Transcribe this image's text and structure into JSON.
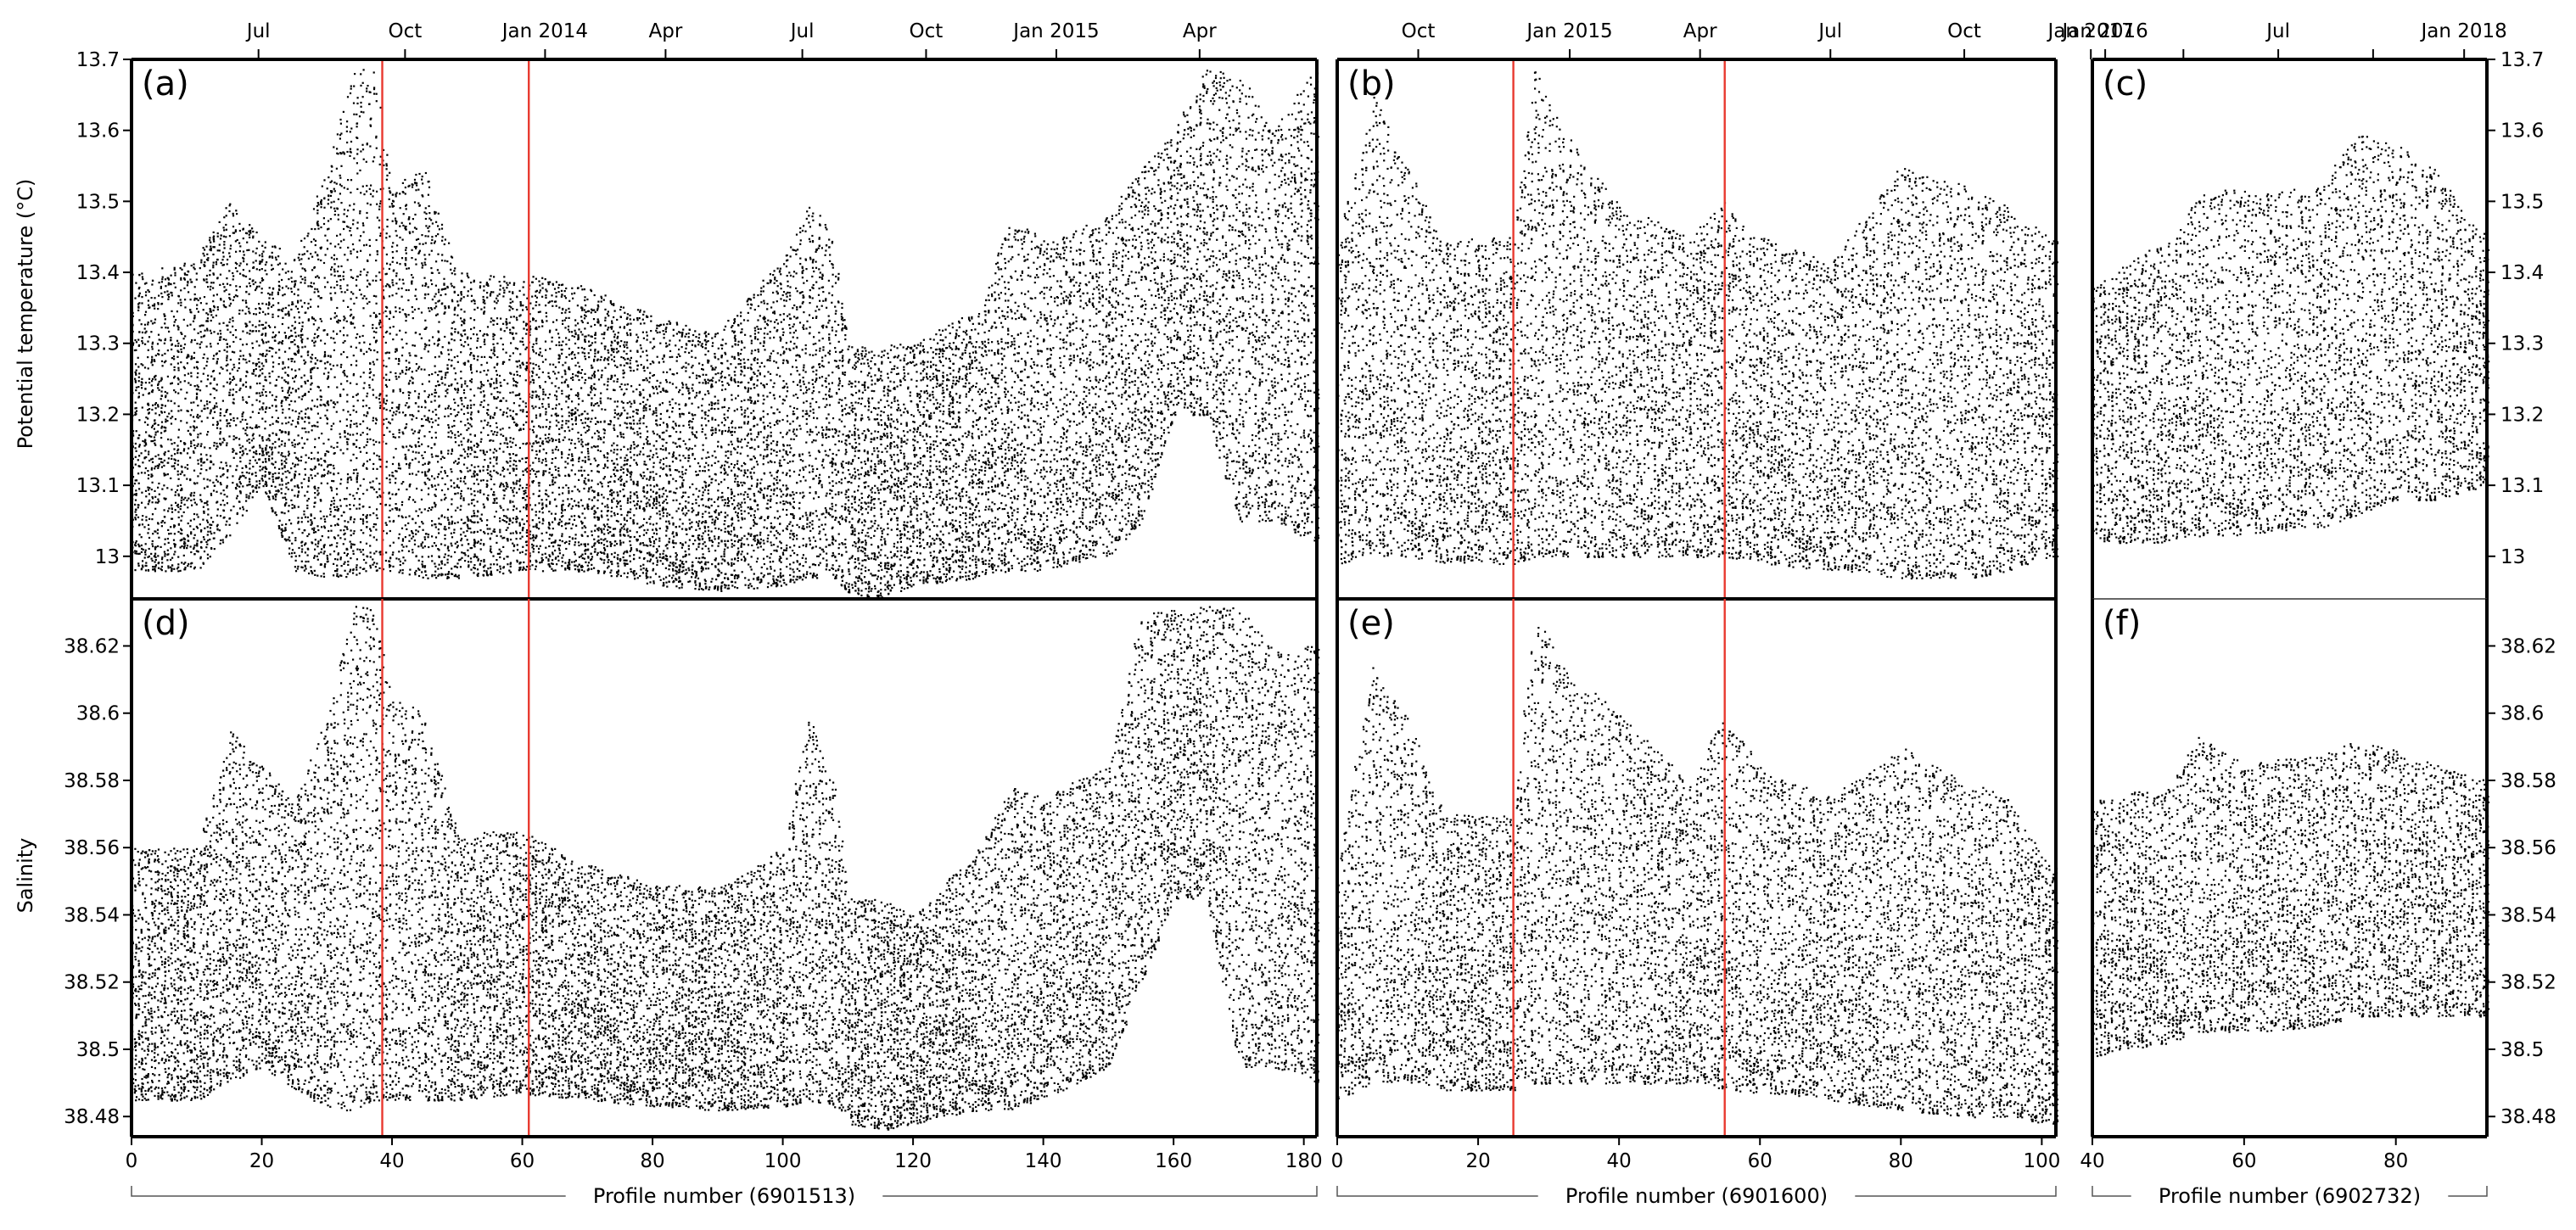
{
  "figure": {
    "ylabel_top": "Potential temperature (°C)",
    "ylabel_bottom": "Salinity"
  },
  "chart_data": [
    {
      "id": "a",
      "panel_label": "(a)",
      "type": "scatter",
      "variable": "potential temperature",
      "xlabel": "Profile number (6901513)",
      "xlim": [
        0,
        182
      ],
      "ylim": [
        12.94,
        13.7
      ],
      "xticks": [
        0,
        20,
        40,
        60,
        80,
        100,
        120,
        140,
        160,
        180
      ],
      "yticks": [
        13,
        13.1,
        13.2,
        13.3,
        13.4,
        13.5,
        13.6,
        13.7
      ],
      "yticks_text": [
        "13",
        "13.1",
        "13.2",
        "13.3",
        "13.4",
        "13.5",
        "13.6",
        "13.7"
      ],
      "top_axis": [
        {
          "x": 19.5,
          "label": "Jul"
        },
        {
          "x": 42,
          "label": "Oct"
        },
        {
          "x": 63.5,
          "label": "Jan 2014"
        },
        {
          "x": 82,
          "label": "Apr"
        },
        {
          "x": 103,
          "label": "Jul"
        },
        {
          "x": 122,
          "label": "Oct"
        },
        {
          "x": 142,
          "label": "Jan 2015"
        },
        {
          "x": 164,
          "label": "Apr"
        }
      ],
      "red_lines": [
        38.5,
        61
      ],
      "envelope": [
        {
          "x": 0,
          "y": [
            12.98,
            13.4
          ]
        },
        {
          "x": 10,
          "y": [
            12.98,
            13.42
          ]
        },
        {
          "x": 15,
          "y": [
            13.03,
            13.5
          ]
        },
        {
          "x": 20,
          "y": [
            13.1,
            13.45
          ]
        },
        {
          "x": 25,
          "y": [
            12.98,
            13.42
          ]
        },
        {
          "x": 30,
          "y": [
            12.97,
            13.55
          ]
        },
        {
          "x": 34,
          "y": [
            12.97,
            13.69
          ]
        },
        {
          "x": 37,
          "y": [
            12.98,
            13.69
          ]
        },
        {
          "x": 40,
          "y": [
            12.98,
            13.52
          ]
        },
        {
          "x": 45,
          "y": [
            12.97,
            13.55
          ]
        },
        {
          "x": 50,
          "y": [
            12.97,
            13.4
          ]
        },
        {
          "x": 60,
          "y": [
            12.98,
            13.4
          ]
        },
        {
          "x": 70,
          "y": [
            12.98,
            13.38
          ]
        },
        {
          "x": 80,
          "y": [
            12.96,
            13.34
          ]
        },
        {
          "x": 90,
          "y": [
            12.95,
            13.32
          ]
        },
        {
          "x": 100,
          "y": [
            12.96,
            13.42
          ]
        },
        {
          "x": 104,
          "y": [
            12.97,
            13.5
          ]
        },
        {
          "x": 108,
          "y": [
            12.97,
            13.45
          ]
        },
        {
          "x": 110,
          "y": [
            12.95,
            13.3
          ]
        },
        {
          "x": 115,
          "y": [
            12.94,
            13.3
          ]
        },
        {
          "x": 120,
          "y": [
            12.96,
            13.3
          ]
        },
        {
          "x": 130,
          "y": [
            12.97,
            13.35
          ]
        },
        {
          "x": 135,
          "y": [
            12.98,
            13.48
          ]
        },
        {
          "x": 140,
          "y": [
            12.98,
            13.45
          ]
        },
        {
          "x": 150,
          "y": [
            13.0,
            13.48
          ]
        },
        {
          "x": 155,
          "y": [
            13.05,
            13.55
          ]
        },
        {
          "x": 160,
          "y": [
            13.2,
            13.6
          ]
        },
        {
          "x": 165,
          "y": [
            13.2,
            13.69
          ]
        },
        {
          "x": 170,
          "y": [
            13.05,
            13.69
          ]
        },
        {
          "x": 175,
          "y": [
            13.05,
            13.6
          ]
        },
        {
          "x": 182,
          "y": [
            13.02,
            13.69
          ]
        }
      ]
    },
    {
      "id": "b",
      "panel_label": "(b)",
      "type": "scatter",
      "variable": "potential temperature",
      "xlabel": "Profile number (6901600)",
      "xlim": [
        0,
        102
      ],
      "ylim": [
        12.94,
        13.7
      ],
      "xticks": [
        0,
        20,
        40,
        60,
        80,
        100
      ],
      "yticks": [
        13,
        13.1,
        13.2,
        13.3,
        13.4,
        13.5,
        13.6,
        13.7
      ],
      "top_axis": [
        {
          "x": 11.5,
          "label": "Oct"
        },
        {
          "x": 33,
          "label": "Jan 2015"
        },
        {
          "x": 51.5,
          "label": "Apr"
        },
        {
          "x": 70,
          "label": "Jul"
        },
        {
          "x": 89,
          "label": "Oct"
        },
        {
          "x": 109,
          "label": "Jan 2016"
        }
      ],
      "red_lines": [
        25,
        55
      ],
      "envelope": [
        {
          "x": 0,
          "y": [
            12.99,
            13.45
          ]
        },
        {
          "x": 5,
          "y": [
            13.0,
            13.65
          ]
        },
        {
          "x": 10,
          "y": [
            13.0,
            13.55
          ]
        },
        {
          "x": 15,
          "y": [
            12.99,
            13.45
          ]
        },
        {
          "x": 25,
          "y": [
            12.99,
            13.45
          ]
        },
        {
          "x": 28,
          "y": [
            13.0,
            13.69
          ]
        },
        {
          "x": 32,
          "y": [
            13.0,
            13.6
          ]
        },
        {
          "x": 40,
          "y": [
            13.0,
            13.5
          ]
        },
        {
          "x": 50,
          "y": [
            13.0,
            13.45
          ]
        },
        {
          "x": 55,
          "y": [
            13.0,
            13.5
          ]
        },
        {
          "x": 60,
          "y": [
            12.99,
            13.45
          ]
        },
        {
          "x": 70,
          "y": [
            12.98,
            13.42
          ]
        },
        {
          "x": 80,
          "y": [
            12.97,
            13.55
          ]
        },
        {
          "x": 90,
          "y": [
            12.97,
            13.52
          ]
        },
        {
          "x": 95,
          "y": [
            12.98,
            13.5
          ]
        },
        {
          "x": 101,
          "y": [
            13.0,
            13.45
          ]
        }
      ]
    },
    {
      "id": "c",
      "panel_label": "(c)",
      "type": "scatter",
      "variable": "potential temperature",
      "xlabel": "Profile number (6902732)",
      "xlim": [
        40,
        92
      ],
      "ylim": [
        12.94,
        13.7
      ],
      "xticks": [
        40,
        60,
        80
      ],
      "yticks": [
        13,
        13.1,
        13.2,
        13.3,
        13.4,
        13.5,
        13.6,
        13.7
      ],
      "top_axis": [
        {
          "x": 39.8,
          "label": "Jan 2017"
        },
        {
          "x": 52,
          "label": ""
        },
        {
          "x": 64.5,
          "label": "Jul"
        },
        {
          "x": 77,
          "label": ""
        },
        {
          "x": 89,
          "label": "Jan 2018"
        }
      ],
      "red_lines": [],
      "envelope": [
        {
          "x": 40,
          "y": [
            13.02,
            13.38
          ]
        },
        {
          "x": 50,
          "y": [
            13.02,
            13.45
          ]
        },
        {
          "x": 55,
          "y": [
            13.03,
            13.52
          ]
        },
        {
          "x": 60,
          "y": [
            13.03,
            13.52
          ]
        },
        {
          "x": 70,
          "y": [
            13.04,
            13.52
          ]
        },
        {
          "x": 75,
          "y": [
            13.06,
            13.6
          ]
        },
        {
          "x": 80,
          "y": [
            13.08,
            13.58
          ]
        },
        {
          "x": 85,
          "y": [
            13.08,
            13.55
          ]
        },
        {
          "x": 92,
          "y": [
            13.1,
            13.45
          ]
        }
      ]
    },
    {
      "id": "d",
      "panel_label": "(d)",
      "type": "scatter",
      "variable": "salinity",
      "xlim": [
        0,
        182
      ],
      "ylim": [
        38.474,
        38.634
      ],
      "xticks": [
        0,
        20,
        40,
        60,
        80,
        100,
        120,
        140,
        160,
        180
      ],
      "yticks": [
        38.48,
        38.5,
        38.52,
        38.54,
        38.56,
        38.58,
        38.6,
        38.62
      ],
      "yticks_text": [
        "38.48",
        "38.5",
        "38.52",
        "38.54",
        "38.56",
        "38.58",
        "38.6",
        "38.62"
      ],
      "red_lines": [
        38.5,
        61
      ],
      "envelope": [
        {
          "x": 0,
          "y": [
            38.485,
            38.56
          ]
        },
        {
          "x": 10,
          "y": [
            38.485,
            38.56
          ]
        },
        {
          "x": 15,
          "y": [
            38.49,
            38.595
          ]
        },
        {
          "x": 20,
          "y": [
            38.495,
            38.585
          ]
        },
        {
          "x": 25,
          "y": [
            38.488,
            38.575
          ]
        },
        {
          "x": 30,
          "y": [
            38.482,
            38.6
          ]
        },
        {
          "x": 34,
          "y": [
            38.482,
            38.632
          ]
        },
        {
          "x": 37,
          "y": [
            38.485,
            38.632
          ]
        },
        {
          "x": 40,
          "y": [
            38.485,
            38.605
          ]
        },
        {
          "x": 45,
          "y": [
            38.485,
            38.6
          ]
        },
        {
          "x": 50,
          "y": [
            38.485,
            38.565
          ]
        },
        {
          "x": 60,
          "y": [
            38.487,
            38.565
          ]
        },
        {
          "x": 70,
          "y": [
            38.485,
            38.555
          ]
        },
        {
          "x": 80,
          "y": [
            38.483,
            38.55
          ]
        },
        {
          "x": 90,
          "y": [
            38.482,
            38.548
          ]
        },
        {
          "x": 100,
          "y": [
            38.483,
            38.56
          ]
        },
        {
          "x": 104,
          "y": [
            38.485,
            38.6
          ]
        },
        {
          "x": 108,
          "y": [
            38.483,
            38.58
          ]
        },
        {
          "x": 110,
          "y": [
            38.478,
            38.545
          ]
        },
        {
          "x": 115,
          "y": [
            38.476,
            38.545
          ]
        },
        {
          "x": 120,
          "y": [
            38.478,
            38.54
          ]
        },
        {
          "x": 130,
          "y": [
            38.482,
            38.56
          ]
        },
        {
          "x": 135,
          "y": [
            38.482,
            38.58
          ]
        },
        {
          "x": 140,
          "y": [
            38.485,
            38.575
          ]
        },
        {
          "x": 150,
          "y": [
            38.495,
            38.585
          ]
        },
        {
          "x": 155,
          "y": [
            38.52,
            38.63
          ]
        },
        {
          "x": 160,
          "y": [
            38.545,
            38.632
          ]
        },
        {
          "x": 165,
          "y": [
            38.545,
            38.632
          ]
        },
        {
          "x": 170,
          "y": [
            38.495,
            38.632
          ]
        },
        {
          "x": 175,
          "y": [
            38.495,
            38.62
          ]
        },
        {
          "x": 182,
          "y": [
            38.49,
            38.62
          ]
        }
      ]
    },
    {
      "id": "e",
      "panel_label": "(e)",
      "type": "scatter",
      "variable": "salinity",
      "xlim": [
        0,
        102
      ],
      "ylim": [
        38.474,
        38.634
      ],
      "xticks": [
        0,
        20,
        40,
        60,
        80,
        100
      ],
      "yticks": [
        38.48,
        38.5,
        38.52,
        38.54,
        38.56,
        38.58,
        38.6,
        38.62
      ],
      "red_lines": [
        25,
        55
      ],
      "envelope": [
        {
          "x": 0,
          "y": [
            38.485,
            38.555
          ]
        },
        {
          "x": 5,
          "y": [
            38.49,
            38.615
          ]
        },
        {
          "x": 10,
          "y": [
            38.49,
            38.6
          ]
        },
        {
          "x": 15,
          "y": [
            38.488,
            38.57
          ]
        },
        {
          "x": 25,
          "y": [
            38.488,
            38.57
          ]
        },
        {
          "x": 28,
          "y": [
            38.49,
            38.632
          ]
        },
        {
          "x": 32,
          "y": [
            38.49,
            38.615
          ]
        },
        {
          "x": 40,
          "y": [
            38.49,
            38.6
          ]
        },
        {
          "x": 50,
          "y": [
            38.49,
            38.58
          ]
        },
        {
          "x": 55,
          "y": [
            38.488,
            38.6
          ]
        },
        {
          "x": 60,
          "y": [
            38.487,
            38.585
          ]
        },
        {
          "x": 70,
          "y": [
            38.485,
            38.575
          ]
        },
        {
          "x": 80,
          "y": [
            38.482,
            38.59
          ]
        },
        {
          "x": 90,
          "y": [
            38.48,
            38.58
          ]
        },
        {
          "x": 95,
          "y": [
            38.48,
            38.575
          ]
        },
        {
          "x": 101,
          "y": [
            38.478,
            38.555
          ]
        }
      ]
    },
    {
      "id": "f",
      "panel_label": "(f)",
      "type": "scatter",
      "variable": "salinity",
      "xlim": [
        40,
        92
      ],
      "ylim": [
        38.474,
        38.634
      ],
      "xticks": [
        40,
        60,
        80
      ],
      "yticks": [
        38.48,
        38.5,
        38.52,
        38.54,
        38.56,
        38.58,
        38.6,
        38.62
      ],
      "yticks_text": [
        "38.48",
        "38.5",
        "38.52",
        "38.54",
        "38.56",
        "38.58",
        "38.6",
        "38.62"
      ],
      "red_lines": [],
      "envelope": [
        {
          "x": 40,
          "y": [
            38.498,
            38.575
          ]
        },
        {
          "x": 50,
          "y": [
            38.502,
            38.578
          ]
        },
        {
          "x": 54,
          "y": [
            38.505,
            38.595
          ]
        },
        {
          "x": 60,
          "y": [
            38.505,
            38.585
          ]
        },
        {
          "x": 70,
          "y": [
            38.507,
            38.588
          ]
        },
        {
          "x": 75,
          "y": [
            38.51,
            38.592
          ]
        },
        {
          "x": 80,
          "y": [
            38.51,
            38.59
          ]
        },
        {
          "x": 85,
          "y": [
            38.51,
            38.585
          ]
        },
        {
          "x": 92,
          "y": [
            38.51,
            38.58
          ]
        }
      ]
    }
  ],
  "colors": {
    "axis": "#000000",
    "points": "#000000",
    "red_lines": "#e8392f",
    "divider": "#333333"
  }
}
